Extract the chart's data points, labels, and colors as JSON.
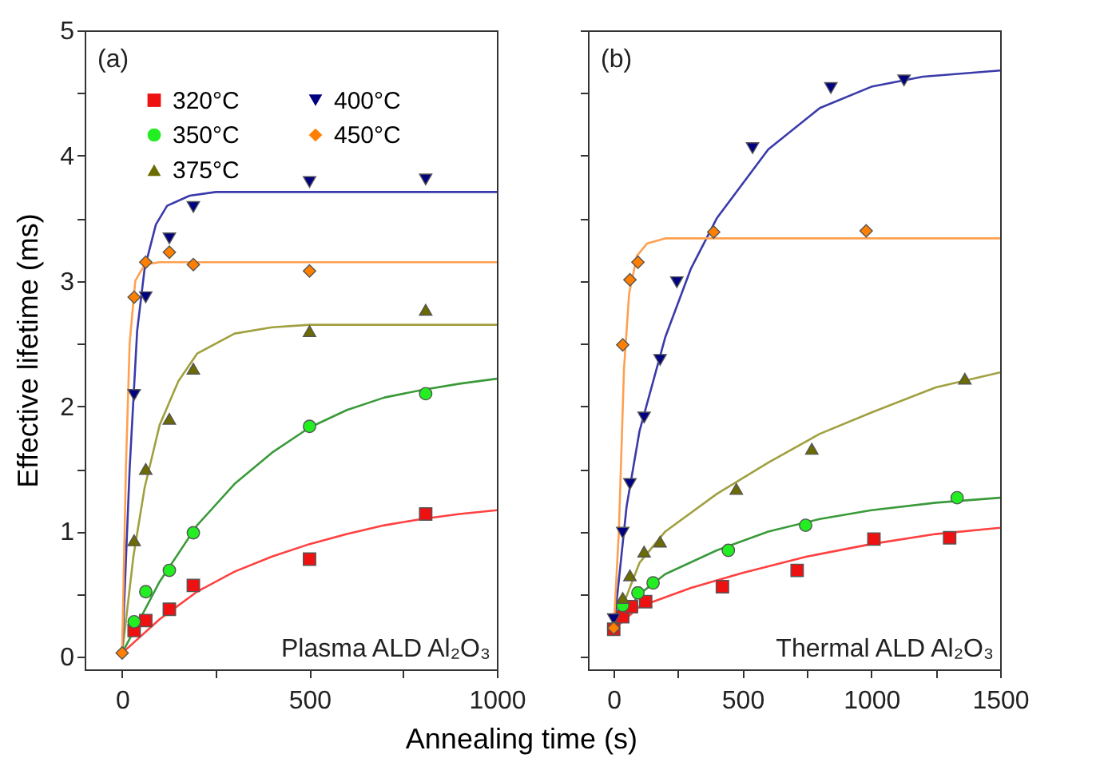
{
  "chart_data": [
    {
      "type": "scatter",
      "ylabel": "Effective lifetime (ms)",
      "xlabel": "Annealing time (s)",
      "annotations": [
        "(a)",
        "Plasma ALD Al₂O₃"
      ],
      "legend": "top left",
      "xlim": [
        -100,
        1000
      ],
      "ylim": [
        -0.1,
        5
      ],
      "xticks": [
        0,
        {
          "value": 250,
          "label": null
        },
        500,
        {
          "value": 750,
          "label": null
        },
        1000
      ],
      "yticks": [
        0,
        {
          "value": 0.5,
          "label": null
        },
        1,
        {
          "value": 1.5,
          "label": null
        },
        2,
        {
          "value": 2.5,
          "label": null
        },
        3,
        {
          "value": 3.5,
          "label": null
        },
        4,
        {
          "value": 4.5,
          "label": null
        },
        5
      ],
      "series": [
        {
          "type": "line",
          "color": "#ff4040",
          "x": [
            0,
            100,
            200,
            300,
            400,
            500,
            600,
            700,
            800,
            900,
            1000
          ],
          "values": [
            0.03,
            0.3,
            0.52,
            0.68,
            0.8,
            0.9,
            0.98,
            1.05,
            1.1,
            1.14,
            1.17
          ]
        },
        {
          "type": "line",
          "color": "#3a9a3a",
          "x": [
            0,
            100,
            200,
            300,
            400,
            500,
            600,
            700,
            800,
            900,
            1000
          ],
          "values": [
            0.03,
            0.6,
            1.05,
            1.38,
            1.63,
            1.83,
            1.97,
            2.07,
            2.13,
            2.18,
            2.22
          ]
        },
        {
          "type": "line",
          "color": "#a0a040",
          "x": [
            0,
            30,
            60,
            100,
            150,
            200,
            300,
            400,
            500,
            1000
          ],
          "values": [
            0.03,
            0.8,
            1.35,
            1.85,
            2.2,
            2.42,
            2.58,
            2.63,
            2.65,
            2.65
          ]
        },
        {
          "type": "line",
          "color": "#3a3aaa",
          "x": [
            0,
            20,
            40,
            60,
            90,
            120,
            180,
            250,
            1000
          ],
          "values": [
            0.03,
            1.5,
            2.6,
            3.1,
            3.45,
            3.6,
            3.68,
            3.71,
            3.71
          ]
        },
        {
          "type": "line",
          "color": "#ffa050",
          "x": [
            0,
            10,
            20,
            35,
            60,
            100,
            1000
          ],
          "values": [
            0.03,
            1.5,
            2.5,
            3.0,
            3.13,
            3.15,
            3.15
          ]
        },
        {
          "type": "scatter",
          "name": "320°C",
          "color": "#ee1111",
          "marker": "square",
          "x": [
            32,
            63,
            126,
            190,
            500,
            810
          ],
          "values": [
            0.21,
            0.29,
            0.38,
            0.57,
            0.78,
            1.14
          ]
        },
        {
          "type": "scatter",
          "name": "350°C",
          "color": "#22ee22",
          "marker": "circle",
          "x": [
            32,
            63,
            126,
            190,
            500,
            810
          ],
          "values": [
            0.28,
            0.52,
            0.69,
            0.99,
            1.84,
            2.1
          ]
        },
        {
          "type": "scatter",
          "name": "375°C",
          "color": "#6b6b00",
          "marker": "triangle",
          "x": [
            32,
            63,
            126,
            190,
            500,
            810
          ],
          "values": [
            0.93,
            1.5,
            1.9,
            2.3,
            2.6,
            2.77
          ]
        },
        {
          "type": "scatter",
          "name": "400°C",
          "color": "#000080",
          "marker": "triangle-down",
          "x": [
            32,
            63,
            126,
            190,
            500,
            810
          ],
          "values": [
            2.09,
            2.87,
            3.34,
            3.59,
            3.79,
            3.81
          ]
        },
        {
          "type": "scatter",
          "name": "450°C",
          "color": "#ff8000",
          "marker": "diamond",
          "x": [
            0,
            32,
            63,
            126,
            190,
            500
          ],
          "values": [
            0.03,
            2.87,
            3.15,
            3.23,
            3.13,
            3.08
          ]
        }
      ]
    },
    {
      "type": "scatter",
      "annotations": [
        "(b)",
        "Thermal ALD Al₂O₃"
      ],
      "tick_labels": "x",
      "xlim": [
        -100,
        1500
      ],
      "ylim": [
        -0.1,
        5
      ],
      "xticks": [
        0,
        {
          "value": 250,
          "label": null
        },
        500,
        {
          "value": 750,
          "label": null
        },
        1000,
        {
          "value": 1250,
          "label": null
        },
        1500
      ],
      "yticks": [
        0,
        {
          "value": 0.5,
          "label": null
        },
        1,
        {
          "value": 1.5,
          "label": null
        },
        2,
        {
          "value": 2.5,
          "label": null
        },
        3,
        {
          "value": 3.5,
          "label": null
        },
        4,
        {
          "value": 4.5,
          "label": null
        },
        5
      ],
      "series": [
        {
          "type": "line",
          "color": "#ff4040",
          "x": [
            0,
            100,
            300,
            500,
            750,
            1000,
            1250,
            1500
          ],
          "values": [
            0.22,
            0.4,
            0.55,
            0.67,
            0.8,
            0.9,
            0.98,
            1.03
          ]
        },
        {
          "type": "line",
          "color": "#3a9a3a",
          "x": [
            0,
            100,
            200,
            400,
            600,
            800,
            1000,
            1250,
            1500
          ],
          "values": [
            0.22,
            0.5,
            0.66,
            0.85,
            1.0,
            1.1,
            1.17,
            1.23,
            1.27
          ]
        },
        {
          "type": "line",
          "color": "#a0a040",
          "x": [
            0,
            100,
            200,
            400,
            600,
            800,
            1000,
            1250,
            1500
          ],
          "values": [
            0.22,
            0.75,
            1.0,
            1.3,
            1.55,
            1.78,
            1.95,
            2.15,
            2.27
          ]
        },
        {
          "type": "line",
          "color": "#3a3aaa",
          "x": [
            0,
            50,
            100,
            200,
            300,
            400,
            600,
            800,
            1000,
            1200,
            1500
          ],
          "values": [
            0.22,
            1.2,
            1.8,
            2.55,
            3.1,
            3.5,
            4.05,
            4.38,
            4.55,
            4.63,
            4.68
          ]
        },
        {
          "type": "line",
          "color": "#ffa050",
          "x": [
            0,
            20,
            40,
            60,
            90,
            130,
            200,
            1500
          ],
          "values": [
            0.22,
            1.0,
            2.3,
            2.9,
            3.2,
            3.3,
            3.34,
            3.34
          ]
        },
        {
          "type": "scatter",
          "color": "#ee1111",
          "marker": "square",
          "x": [
            0,
            35,
            69,
            124,
            422,
            712,
            1010,
            1304
          ],
          "values": [
            0.22,
            0.32,
            0.4,
            0.44,
            0.56,
            0.69,
            0.94,
            0.95
          ]
        },
        {
          "type": "scatter",
          "color": "#22ee22",
          "marker": "circle",
          "x": [
            35,
            94,
            153,
            445,
            745,
            1333
          ],
          "values": [
            0.41,
            0.51,
            0.59,
            0.85,
            1.05,
            1.27
          ]
        },
        {
          "type": "scatter",
          "color": "#6b6b00",
          "marker": "triangle",
          "x": [
            35,
            63,
            118,
            180,
            476,
            769,
            1363
          ],
          "values": [
            0.47,
            0.65,
            0.84,
            0.92,
            1.34,
            1.66,
            2.22
          ]
        },
        {
          "type": "scatter",
          "color": "#000080",
          "marker": "triangle-down",
          "x": [
            0,
            35,
            63,
            118,
            180,
            245,
            539,
            843,
            1127
          ],
          "values": [
            0.3,
            0.99,
            1.38,
            1.91,
            2.37,
            2.99,
            4.06,
            4.54,
            4.6
          ]
        },
        {
          "type": "scatter",
          "color": "#ff8000",
          "marker": "diamond",
          "x": [
            0,
            35,
            63,
            94,
            388,
            980
          ],
          "values": [
            0.23,
            2.49,
            3.01,
            3.15,
            3.39,
            3.4
          ]
        }
      ]
    }
  ]
}
